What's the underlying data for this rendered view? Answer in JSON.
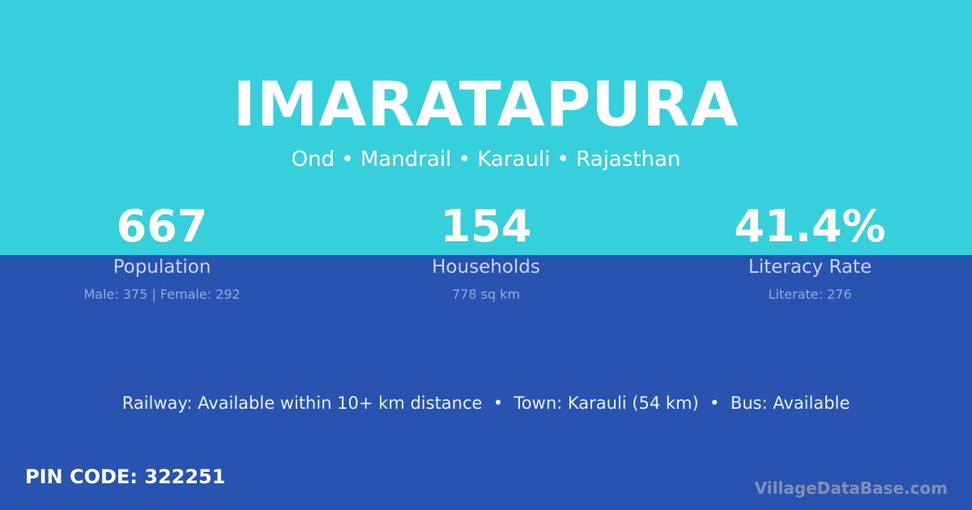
{
  "village": {
    "name": "IMARATAPURA",
    "location": "Ond • Mandrail • Karauli • Rajasthan"
  },
  "stats": [
    {
      "value": "667",
      "label": "Population",
      "detail": "Male: 375 | Female: 292"
    },
    {
      "value": "154",
      "label": "Households",
      "detail": "778 sq km"
    },
    {
      "value": "41.4%",
      "label": "Literacy Rate",
      "detail": "Literate: 276"
    }
  ],
  "transport": "Railway: Available within 10+ km distance  •  Town: Karauli (54 km)  •  Bus: Available",
  "pin_code": "PIN CODE: 322251",
  "brand": "VillageDataBase.com",
  "colors": {
    "top": "#36d0dc",
    "bottom": "#2853b0"
  }
}
